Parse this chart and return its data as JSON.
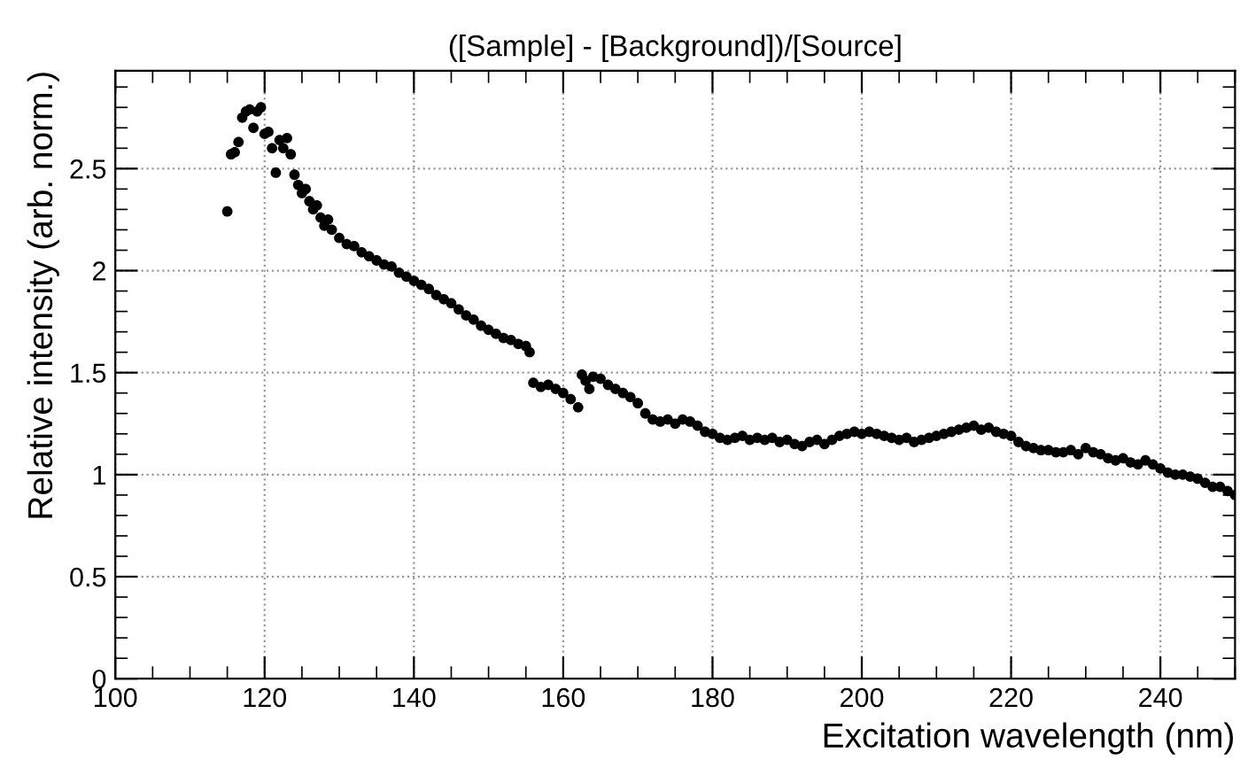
{
  "chart_data": {
    "type": "scatter",
    "title": "([Sample] - [Background])/[Source]",
    "xlabel": "Excitation wavelength (nm)",
    "ylabel": "Relative intensity (arb. norm.)",
    "xlim": [
      100,
      250
    ],
    "ylim": [
      0,
      2.98
    ],
    "xticks": [
      100,
      120,
      140,
      160,
      180,
      200,
      220,
      240
    ],
    "yticks": [
      0,
      0.5,
      1,
      1.5,
      2,
      2.5
    ],
    "grid": true,
    "marker": "circle",
    "series": [
      {
        "color": "#000000",
        "x": [
          115,
          115.5,
          116,
          116.5,
          117,
          117.5,
          118,
          118.5,
          119,
          119.5,
          120,
          120.5,
          121,
          121.5,
          122,
          122.5,
          123,
          123.5,
          124,
          124.5,
          125,
          125.5,
          126,
          126.5,
          127,
          127.5,
          128,
          128.5,
          129,
          130,
          131,
          132,
          133,
          134,
          135,
          136,
          137,
          138,
          139,
          140,
          141,
          142,
          143,
          144,
          145,
          146,
          147,
          148,
          149,
          150,
          151,
          152,
          153,
          154,
          155,
          155.5,
          156,
          157,
          158,
          159,
          160,
          161,
          162,
          162.5,
          163,
          163.5,
          164,
          165,
          166,
          167,
          168,
          169,
          170,
          171,
          172,
          173,
          174,
          175,
          176,
          177,
          178,
          179,
          180,
          181,
          182,
          183,
          184,
          185,
          186,
          187,
          188,
          189,
          190,
          191,
          192,
          193,
          194,
          195,
          196,
          197,
          198,
          199,
          200,
          201,
          202,
          203,
          204,
          205,
          206,
          207,
          208,
          209,
          210,
          211,
          212,
          213,
          214,
          215,
          216,
          217,
          218,
          219,
          220,
          221,
          222,
          223,
          224,
          225,
          226,
          227,
          228,
          229,
          230,
          231,
          232,
          233,
          234,
          235,
          236,
          237,
          238,
          239,
          240,
          241,
          242,
          243,
          244,
          245,
          246,
          247,
          248,
          249,
          250
        ],
        "values": [
          2.29,
          2.57,
          2.58,
          2.63,
          2.75,
          2.78,
          2.79,
          2.7,
          2.78,
          2.8,
          2.67,
          2.68,
          2.6,
          2.48,
          2.64,
          2.6,
          2.65,
          2.57,
          2.47,
          2.42,
          2.38,
          2.4,
          2.34,
          2.3,
          2.32,
          2.26,
          2.22,
          2.25,
          2.2,
          2.16,
          2.13,
          2.12,
          2.09,
          2.07,
          2.05,
          2.03,
          2.02,
          1.99,
          1.97,
          1.95,
          1.93,
          1.91,
          1.88,
          1.86,
          1.84,
          1.81,
          1.78,
          1.76,
          1.73,
          1.71,
          1.69,
          1.67,
          1.66,
          1.64,
          1.63,
          1.6,
          1.45,
          1.43,
          1.44,
          1.42,
          1.4,
          1.37,
          1.33,
          1.49,
          1.46,
          1.42,
          1.48,
          1.47,
          1.44,
          1.42,
          1.4,
          1.38,
          1.35,
          1.3,
          1.27,
          1.26,
          1.27,
          1.25,
          1.27,
          1.26,
          1.24,
          1.21,
          1.2,
          1.18,
          1.17,
          1.18,
          1.19,
          1.17,
          1.18,
          1.17,
          1.18,
          1.16,
          1.17,
          1.15,
          1.14,
          1.16,
          1.17,
          1.15,
          1.17,
          1.19,
          1.2,
          1.21,
          1.2,
          1.21,
          1.2,
          1.19,
          1.18,
          1.17,
          1.18,
          1.16,
          1.17,
          1.18,
          1.19,
          1.2,
          1.21,
          1.22,
          1.23,
          1.24,
          1.22,
          1.23,
          1.21,
          1.2,
          1.19,
          1.16,
          1.14,
          1.13,
          1.12,
          1.12,
          1.11,
          1.11,
          1.12,
          1.1,
          1.13,
          1.11,
          1.1,
          1.08,
          1.07,
          1.08,
          1.06,
          1.05,
          1.07,
          1.05,
          1.03,
          1.01,
          1.0,
          1.0,
          0.99,
          0.98,
          0.96,
          0.94,
          0.94,
          0.92,
          0.9
        ]
      }
    ]
  }
}
